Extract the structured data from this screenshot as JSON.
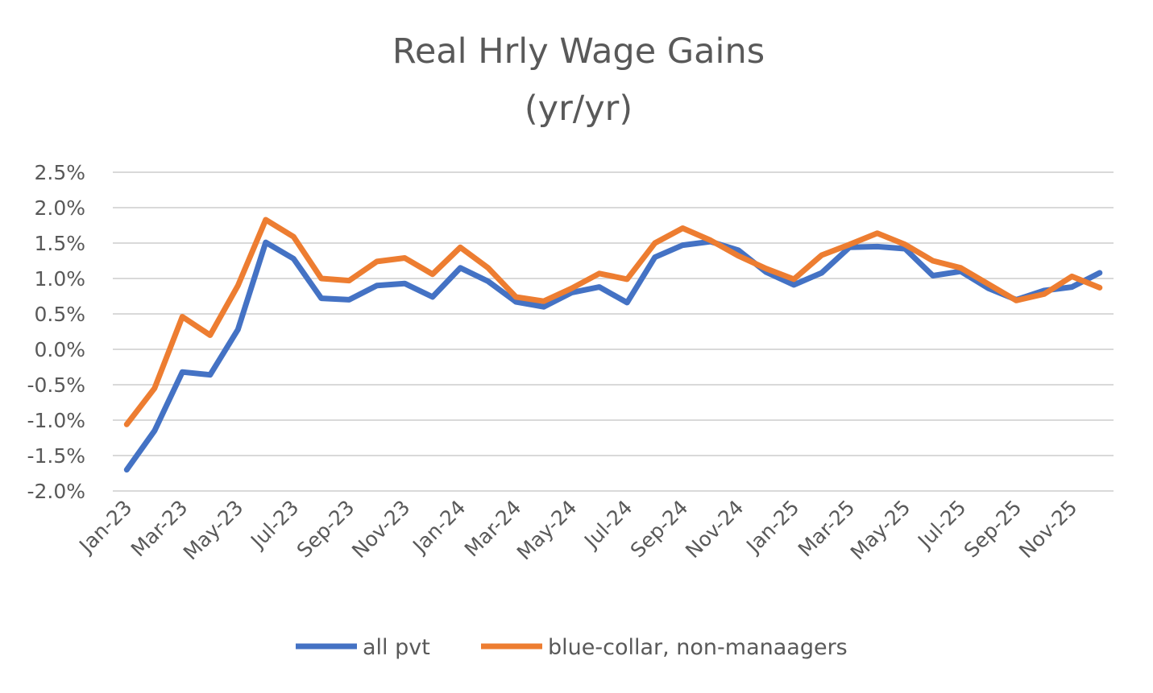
{
  "chart_data": {
    "type": "line",
    "title_lines": [
      "Real Hrly Wage Gains",
      "(yr/yr)"
    ],
    "x": [
      "Jan-23",
      "Feb-23",
      "Mar-23",
      "Apr-23",
      "May-23",
      "Jun-23",
      "Jul-23",
      "Aug-23",
      "Sep-23",
      "Oct-23",
      "Nov-23",
      "Dec-23",
      "Jan-24",
      "Feb-24",
      "Mar-24",
      "Apr-24",
      "May-24",
      "Jun-24",
      "Jul-24",
      "Aug-24",
      "Sep-24",
      "Oct-24",
      "Nov-24",
      "Dec-24",
      "Jan-25",
      "Feb-25",
      "Mar-25",
      "Apr-25",
      "May-25",
      "Jun-25",
      "Jul-25",
      "Aug-25",
      "Sep-25",
      "Oct-25",
      "Nov-25",
      "Dec-25"
    ],
    "x_tick_labels": [
      "Jan-23",
      "Mar-23",
      "May-23",
      "Jul-23",
      "Sep-23",
      "Nov-23",
      "Jan-24",
      "Mar-24",
      "May-24",
      "Jul-24",
      "Sep-24",
      "Nov-24",
      "Jan-25",
      "Mar-25",
      "May-25",
      "Jul-25",
      "Sep-25",
      "Nov-25"
    ],
    "y_ticks": [
      "2.5%",
      "2.0%",
      "1.5%",
      "1.0%",
      "0.5%",
      "0.0%",
      "-0.5%",
      "-1.0%",
      "-1.5%",
      "-2.0%"
    ],
    "ylim": [
      -2.0,
      2.5
    ],
    "grid": true,
    "legend_position": "bottom",
    "series": [
      {
        "name": "all pvt",
        "color": "#4472C4",
        "values": [
          -1.7,
          -1.15,
          -0.32,
          -0.36,
          0.28,
          1.51,
          1.28,
          0.72,
          0.7,
          0.9,
          0.93,
          0.74,
          1.15,
          0.96,
          0.67,
          0.6,
          0.8,
          0.88,
          0.66,
          1.3,
          1.47,
          1.52,
          1.4,
          1.09,
          0.91,
          1.08,
          1.44,
          1.45,
          1.42,
          1.04,
          1.1,
          0.86,
          0.7,
          0.83,
          0.88,
          1.08
        ]
      },
      {
        "name": "blue-collar, non-manaagers",
        "color": "#ED7D31",
        "values": [
          -1.06,
          -0.55,
          0.46,
          0.2,
          0.9,
          1.83,
          1.59,
          1.0,
          0.97,
          1.24,
          1.29,
          1.06,
          1.44,
          1.15,
          0.74,
          0.68,
          0.86,
          1.07,
          0.99,
          1.5,
          1.71,
          1.54,
          1.32,
          1.14,
          0.99,
          1.33,
          1.48,
          1.64,
          1.48,
          1.25,
          1.15,
          0.92,
          0.69,
          0.78,
          1.03,
          0.87
        ]
      }
    ]
  }
}
